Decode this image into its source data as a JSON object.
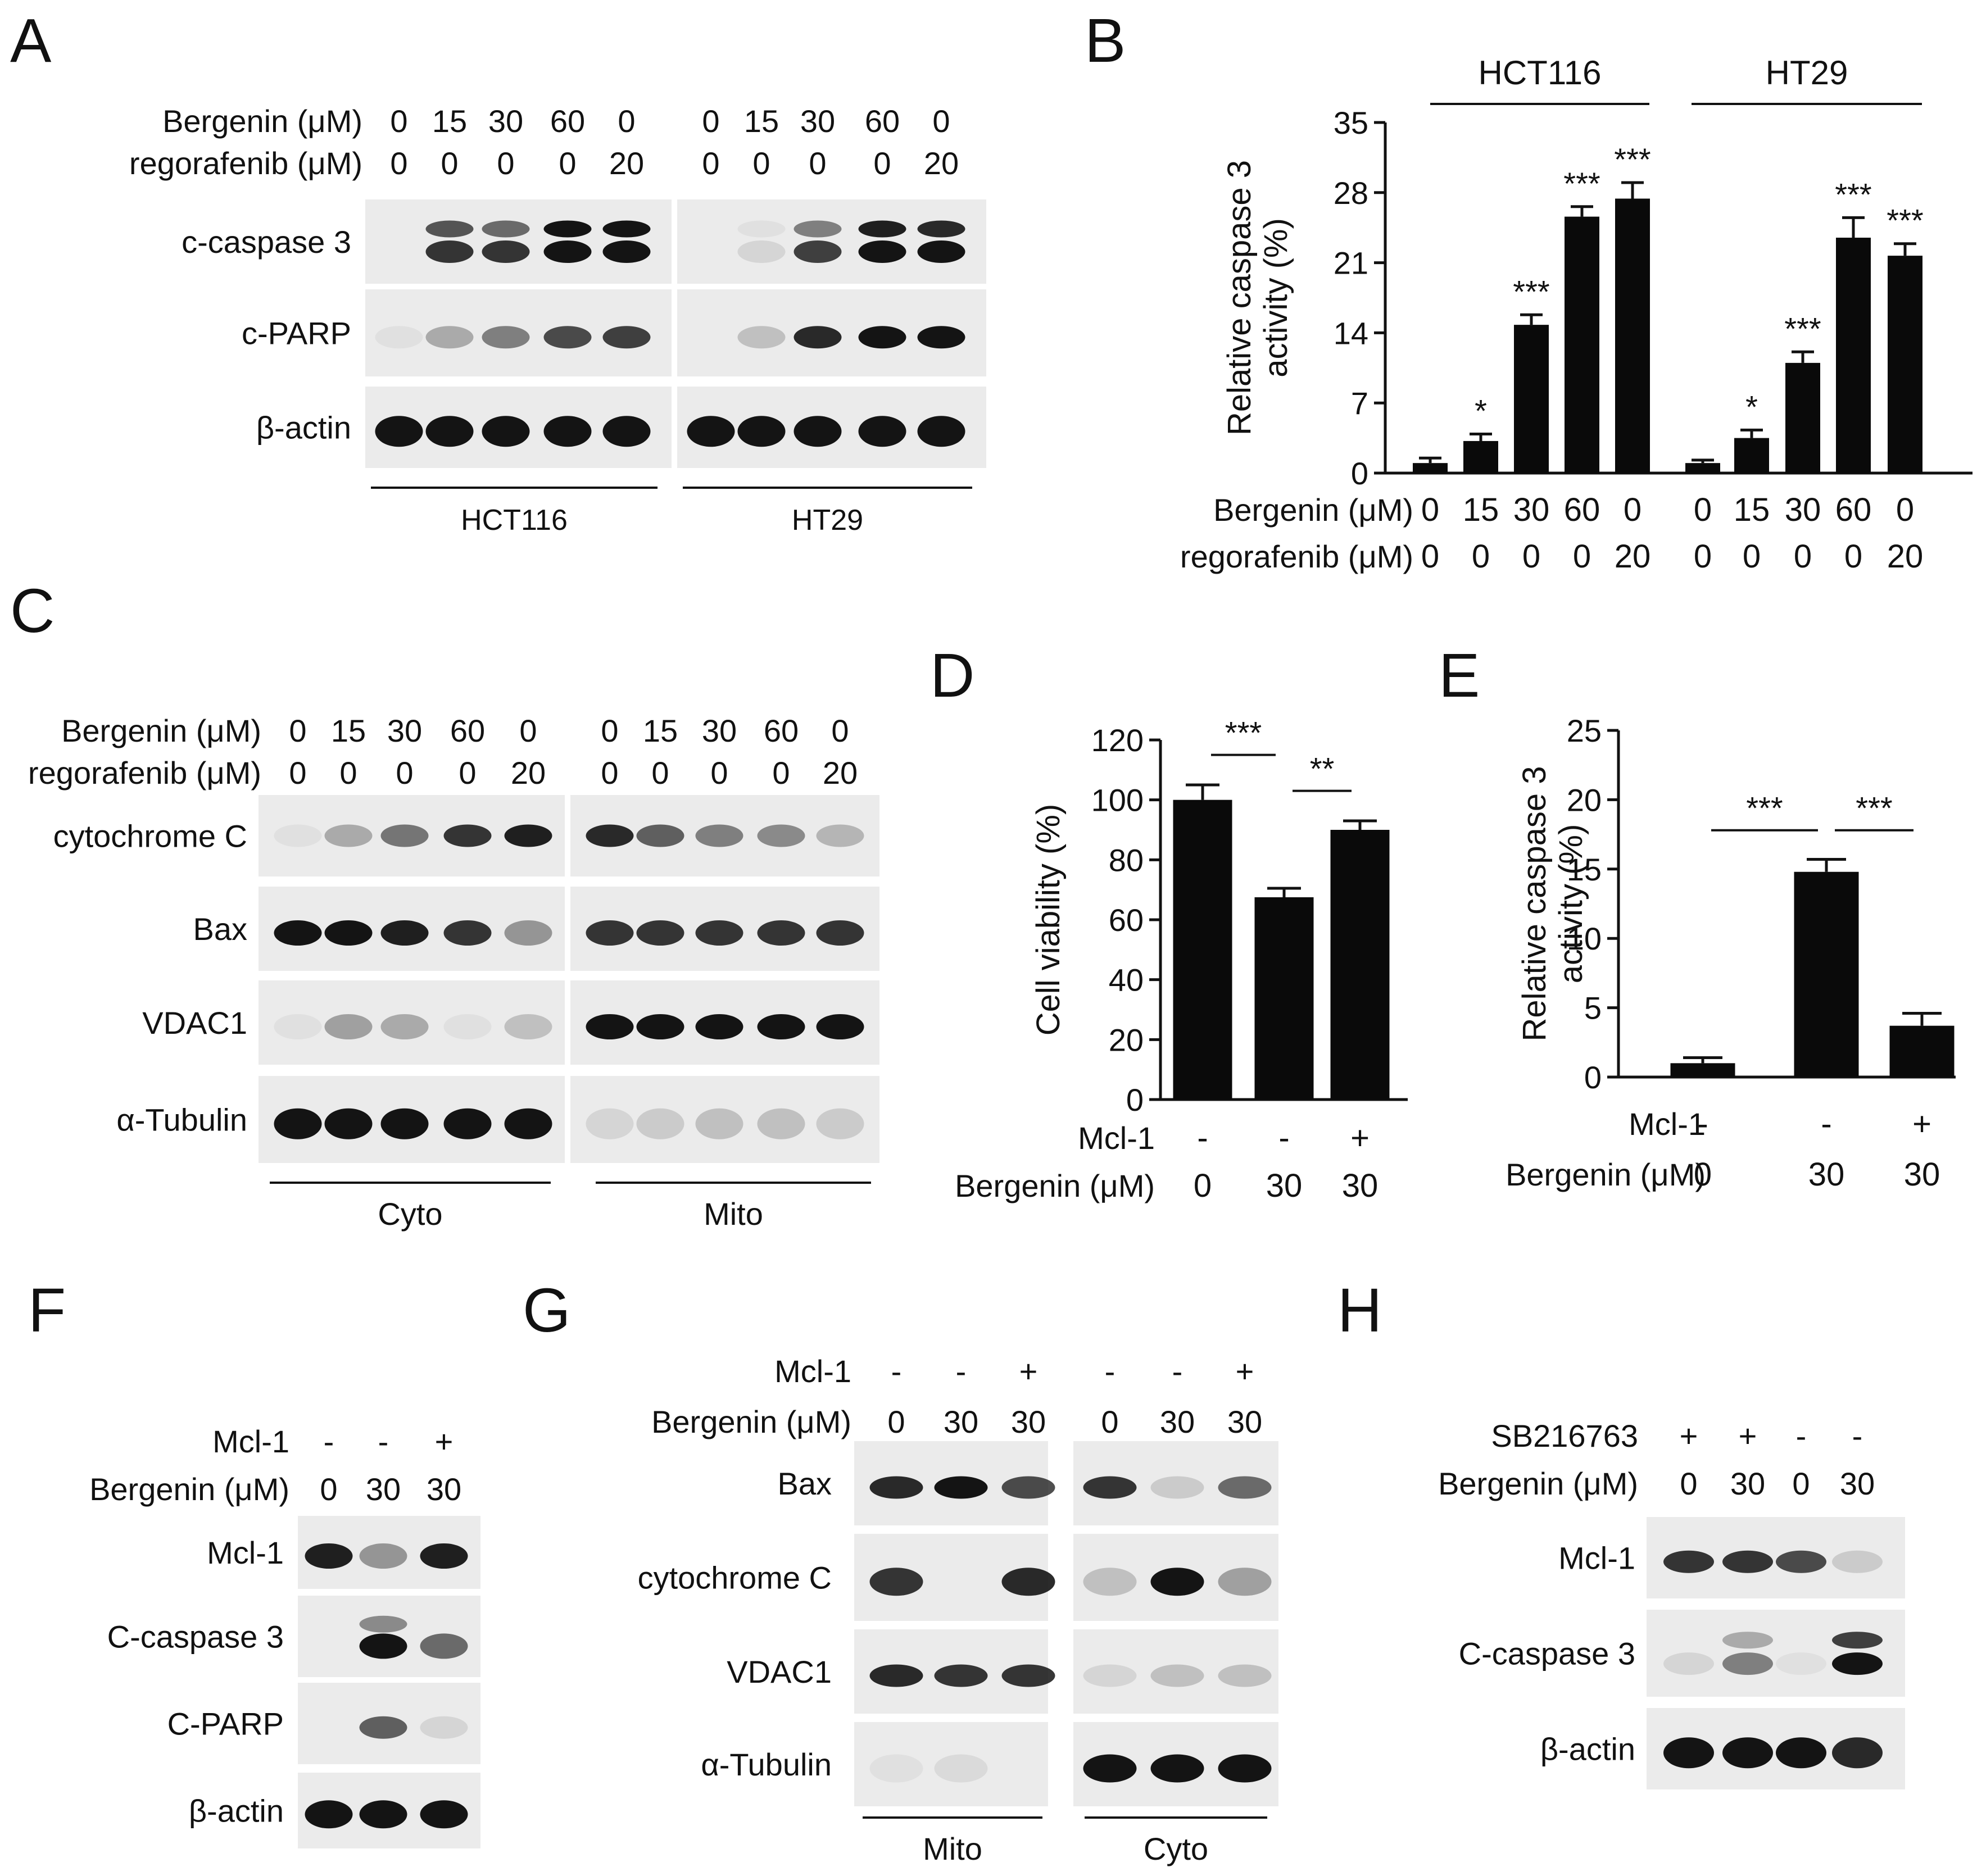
{
  "panel_letters": {
    "A": "A",
    "B": "B",
    "C": "C",
    "D": "D",
    "E": "E",
    "F": "F",
    "G": "G",
    "H": "H"
  },
  "panelA": {
    "row1_label": "Bergenin (μM)",
    "row1_values": [
      "0",
      "15",
      "30",
      "60",
      "0",
      "0",
      "15",
      "30",
      "60",
      "0"
    ],
    "row2_label": "regorafenib (μM)",
    "row2_values": [
      "0",
      "0",
      "0",
      "0",
      "20",
      "0",
      "0",
      "0",
      "0",
      "20"
    ],
    "rows": [
      "c-caspase 3",
      "c-PARP",
      "β-actin"
    ],
    "groups": [
      "HCT116",
      "HT29"
    ]
  },
  "panelC": {
    "row1_label": "Bergenin (μM)",
    "row1_values": [
      "0",
      "15",
      "30",
      "60",
      "0",
      "0",
      "15",
      "30",
      "60",
      "0"
    ],
    "row2_label": "regorafenib (μM)",
    "row2_values": [
      "0",
      "0",
      "0",
      "0",
      "20",
      "0",
      "0",
      "0",
      "0",
      "20"
    ],
    "rows": [
      "cytochrome C",
      "Bax",
      "VDAC1",
      "α-Tubulin"
    ],
    "groups": [
      "Cyto",
      "Mito"
    ]
  },
  "panelF": {
    "mcl_label": "Mcl-1",
    "mcl_values": [
      "-",
      "-",
      "+"
    ],
    "berg_label": "Bergenin (μM)",
    "berg_values": [
      "0",
      "30",
      "30"
    ],
    "rows": [
      "Mcl-1",
      "C-caspase 3",
      "C-PARP",
      "β-actin"
    ]
  },
  "panelG": {
    "mcl_label": "Mcl-1",
    "mcl_values": [
      "-",
      "-",
      "+",
      "-",
      "-",
      "+"
    ],
    "berg_label": "Bergenin (μM)",
    "berg_values": [
      "0",
      "30",
      "30",
      "0",
      "30",
      "30"
    ],
    "rows": [
      "Bax",
      "cytochrome C",
      "VDAC1",
      "α-Tubulin"
    ],
    "groups": [
      "Mito",
      "Cyto"
    ]
  },
  "panelH": {
    "sb_label": "SB216763",
    "sb_values": [
      "+",
      "+",
      "-",
      "-"
    ],
    "berg_label": "Bergenin (μM)",
    "berg_values": [
      "0",
      "30",
      "0",
      "30"
    ],
    "rows": [
      "Mcl-1",
      "C-caspase 3",
      "β-actin"
    ]
  },
  "chart_data": [
    {
      "id": "B",
      "type": "bar",
      "ylabel": "Relative caspase 3 activity (%)",
      "ylabel_lines": [
        "Relative caspase 3",
        "activity (%)"
      ],
      "ylim": [
        0,
        35
      ],
      "yticks": [
        0,
        7,
        14,
        21,
        28,
        35
      ],
      "groups": [
        "HCT116",
        "HT29"
      ],
      "x_row1_label": "Bergenin (μM)",
      "x_row1": [
        "0",
        "15",
        "30",
        "60",
        "0",
        "0",
        "15",
        "30",
        "60",
        "0"
      ],
      "x_row2_label": "regorafenib (μM)",
      "x_row2": [
        "0",
        "0",
        "0",
        "0",
        "20",
        "0",
        "0",
        "0",
        "0",
        "20"
      ],
      "values": [
        1.0,
        3.2,
        14.8,
        25.6,
        27.4,
        1.0,
        3.5,
        11.0,
        23.5,
        21.7
      ],
      "errors": [
        0.5,
        0.7,
        1.0,
        1.0,
        1.6,
        0.3,
        0.8,
        1.1,
        2.0,
        1.2
      ],
      "significance": [
        "",
        "*",
        "***",
        "***",
        "***",
        "",
        "*",
        "***",
        "***",
        "***"
      ]
    },
    {
      "id": "D",
      "type": "bar",
      "ylabel": "Cell viability (%)",
      "ylim": [
        0,
        120
      ],
      "yticks": [
        0,
        20,
        40,
        60,
        80,
        100,
        120
      ],
      "x_row1_label": "Mcl-1",
      "x_row1": [
        "-",
        "-",
        "+"
      ],
      "x_row2_label": "Bergenin (μM)",
      "x_row2": [
        "0",
        "30",
        "30"
      ],
      "values": [
        100,
        67.5,
        90
      ],
      "errors": [
        5,
        3,
        3
      ],
      "brackets": [
        {
          "from": 0,
          "to": 1,
          "label": "***",
          "y": 115
        },
        {
          "from": 1,
          "to": 2,
          "label": "**",
          "y": 103
        }
      ]
    },
    {
      "id": "E",
      "type": "bar",
      "ylabel": "Relative caspase 3 activity (%)",
      "ylabel_lines": [
        "Relative caspase 3",
        "activity (%)"
      ],
      "ylim": [
        0,
        25
      ],
      "yticks": [
        0,
        5,
        10,
        15,
        20,
        25
      ],
      "x_row1_label": "Mcl-1",
      "x_row1": [
        "-",
        "-",
        "+"
      ],
      "x_row2_label": "Bergenin (μM)",
      "x_row2": [
        "0",
        "30",
        "30"
      ],
      "values": [
        1.0,
        14.8,
        3.7
      ],
      "errors": [
        0.4,
        0.9,
        0.9
      ],
      "brackets": [
        {
          "from": 0,
          "to": 1,
          "label": "***",
          "y": 17.8
        },
        {
          "from": 1,
          "to": 2,
          "label": "***",
          "y": 17.8
        }
      ]
    }
  ]
}
